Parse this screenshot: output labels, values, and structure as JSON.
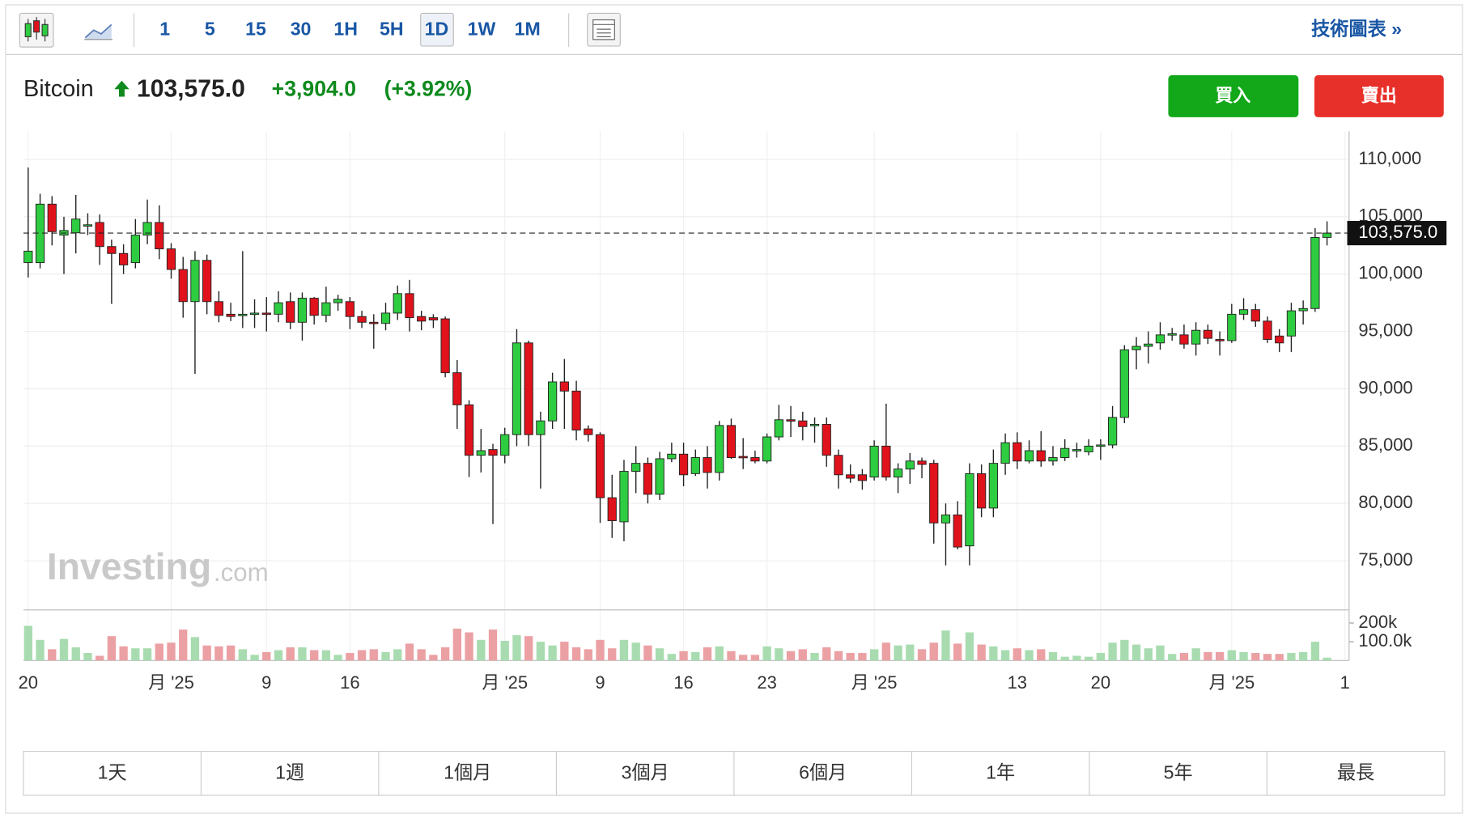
{
  "toolbar": {
    "intervals": [
      "1",
      "5",
      "15",
      "30",
      "1H",
      "5H",
      "1D",
      "1W",
      "1M"
    ],
    "selected_interval": "1D",
    "technical_link": "技術圖表 »"
  },
  "header": {
    "name": "Bitcoin",
    "price": "103,575.0",
    "change": "+3,904.0",
    "change_pct": "(+3.92%)"
  },
  "buttons": {
    "buy": "買入",
    "sell": "賣出"
  },
  "watermark": {
    "brand": "Investing",
    "suffix": ".com"
  },
  "chart_data": {
    "type": "candlestick",
    "x": [
      0,
      1,
      2,
      3,
      4,
      5,
      6,
      7,
      8,
      9,
      10,
      11,
      12,
      13,
      14,
      15,
      16,
      17,
      18,
      19,
      20,
      21,
      22,
      23,
      24,
      25,
      26,
      27,
      28,
      29,
      30,
      31,
      32,
      33,
      34,
      35,
      36,
      37,
      38,
      39,
      40,
      41,
      42,
      43,
      44,
      45,
      46,
      47,
      48,
      49,
      50,
      51,
      52,
      53,
      54,
      55,
      56,
      57,
      58,
      59,
      60,
      61,
      62,
      63,
      64,
      65,
      66,
      67,
      68,
      69,
      70,
      71,
      72,
      73,
      74,
      75,
      76,
      77,
      78,
      79,
      80,
      81,
      82,
      83,
      84,
      85,
      86,
      87,
      88,
      89,
      90,
      91,
      92,
      93,
      94,
      95,
      96,
      97,
      98,
      99,
      100,
      101,
      102,
      103,
      104,
      105,
      106,
      107,
      108,
      109
    ],
    "open": [
      101000,
      101000,
      106100,
      103400,
      103600,
      104200,
      104500,
      102400,
      101800,
      101000,
      103400,
      104500,
      102200,
      100400,
      97600,
      101200,
      97600,
      96500,
      96400,
      96500,
      96600,
      96500,
      97600,
      95800,
      97900,
      96400,
      97500,
      97600,
      96300,
      95800,
      95700,
      96600,
      98300,
      96300,
      96200,
      96100,
      91400,
      88600,
      84200,
      84700,
      84200,
      86000,
      94000,
      86000,
      87200,
      90600,
      89800,
      86500,
      86000,
      80500,
      78400,
      82800,
      83500,
      80800,
      83900,
      84300,
      82600,
      84000,
      82700,
      86800,
      84100,
      84000,
      83700,
      85800,
      87300,
      87200,
      86800,
      86900,
      84200,
      82500,
      82500,
      82300,
      85000,
      82300,
      83000,
      83700,
      83500,
      78300,
      79000,
      76300,
      82600,
      79600,
      83500,
      85300,
      83700,
      84600,
      83700,
      84000,
      84600,
      84500,
      85000,
      85100,
      87500,
      93400,
      93700,
      94000,
      94700,
      94700,
      93900,
      95100,
      94300,
      94200,
      96500,
      96900,
      95900,
      94600,
      94600,
      96800,
      97000,
      103200
    ],
    "high": [
      109300,
      107000,
      106800,
      105000,
      106900,
      105300,
      105200,
      103000,
      102600,
      104800,
      106500,
      106000,
      102700,
      101500,
      102000,
      101700,
      98500,
      97500,
      102000,
      97800,
      98000,
      98500,
      98400,
      98400,
      98000,
      98900,
      98200,
      98000,
      96800,
      96500,
      97500,
      99000,
      99500,
      96800,
      96500,
      96300,
      92500,
      89000,
      86500,
      85200,
      86600,
      95200,
      94200,
      88000,
      91400,
      92600,
      90700,
      86800,
      86200,
      82500,
      83800,
      85000,
      84000,
      84500,
      85300,
      85300,
      84700,
      85000,
      87200,
      87400,
      85700,
      84600,
      86100,
      88600,
      88500,
      88000,
      87500,
      87500,
      84700,
      83400,
      83000,
      85500,
      88700,
      83500,
      84400,
      84000,
      83800,
      80000,
      80200,
      83500,
      83400,
      84700,
      86100,
      86200,
      85500,
      86300,
      85000,
      85600,
      85300,
      85600,
      85600,
      88500,
      93800,
      94500,
      95000,
      95800,
      95300,
      95600,
      95800,
      95600,
      95000,
      97400,
      97900,
      97400,
      96300,
      95200,
      97500,
      97700,
      104000,
      104600
    ],
    "low": [
      99700,
      100500,
      102500,
      100000,
      101800,
      103400,
      100800,
      97400,
      100000,
      100500,
      102600,
      101300,
      99600,
      96200,
      91300,
      96500,
      95800,
      95900,
      95300,
      95300,
      95000,
      95800,
      95200,
      94200,
      95600,
      95800,
      96800,
      95200,
      95300,
      93500,
      95100,
      96000,
      95000,
      95100,
      95300,
      91000,
      86500,
      82300,
      82700,
      78200,
      83500,
      85000,
      85000,
      81300,
      86500,
      86500,
      85500,
      85400,
      78300,
      77000,
      76700,
      80900,
      80000,
      80300,
      83600,
      81500,
      82400,
      81300,
      82000,
      83900,
      83000,
      83500,
      83500,
      85500,
      85800,
      85500,
      85300,
      83200,
      81300,
      81800,
      81200,
      82000,
      82000,
      80900,
      81700,
      82200,
      76500,
      74600,
      76000,
      74600,
      78800,
      78800,
      82500,
      83000,
      83500,
      83200,
      83300,
      83700,
      84000,
      84200,
      83800,
      84800,
      87000,
      91700,
      92200,
      93400,
      94200,
      93500,
      92900,
      93900,
      92900,
      94000,
      96000,
      95400,
      94000,
      93200,
      93200,
      95600,
      96700,
      102500
    ],
    "close": [
      102000,
      106100,
      103700,
      103800,
      104800,
      104300,
      102400,
      101800,
      100800,
      103400,
      104500,
      102200,
      100400,
      97600,
      101200,
      97600,
      96400,
      96300,
      96500,
      96600,
      96500,
      97500,
      95800,
      97900,
      96400,
      97500,
      97800,
      96300,
      95800,
      95700,
      96600,
      98300,
      96200,
      95900,
      96000,
      91400,
      88600,
      84200,
      84600,
      84200,
      86000,
      94000,
      86000,
      87200,
      90600,
      89800,
      86400,
      86000,
      80500,
      78500,
      82800,
      83500,
      80800,
      83900,
      84300,
      82500,
      84000,
      82700,
      86800,
      84000,
      84000,
      83700,
      85800,
      87300,
      87200,
      86700,
      86900,
      84200,
      82500,
      82200,
      82000,
      85000,
      82300,
      83000,
      83700,
      83400,
      78300,
      79000,
      76200,
      82600,
      79600,
      83500,
      85300,
      83700,
      84600,
      83700,
      84000,
      84800,
      84700,
      85000,
      85100,
      87500,
      93400,
      93700,
      93900,
      94700,
      94800,
      93900,
      95100,
      94400,
      94200,
      96500,
      96900,
      95900,
      94300,
      94000,
      96800,
      97000,
      103200,
      103575
    ],
    "volume": [
      185000,
      110000,
      60000,
      115000,
      70000,
      40000,
      25000,
      130000,
      75000,
      65000,
      65000,
      90000,
      95000,
      165000,
      125000,
      80000,
      75000,
      80000,
      60000,
      30000,
      45000,
      55000,
      70000,
      70000,
      55000,
      55000,
      30000,
      40000,
      55000,
      60000,
      45000,
      60000,
      90000,
      60000,
      30000,
      70000,
      170000,
      150000,
      110000,
      165000,
      105000,
      135000,
      130000,
      100000,
      80000,
      100000,
      70000,
      60000,
      110000,
      65000,
      110000,
      95000,
      80000,
      65000,
      35000,
      50000,
      45000,
      70000,
      75000,
      50000,
      30000,
      30000,
      75000,
      65000,
      50000,
      60000,
      40000,
      70000,
      50000,
      40000,
      40000,
      60000,
      95000,
      80000,
      85000,
      60000,
      95000,
      160000,
      90000,
      150000,
      85000,
      75000,
      55000,
      65000,
      55000,
      60000,
      45000,
      20000,
      25000,
      20000,
      40000,
      95000,
      110000,
      85000,
      65000,
      80000,
      35000,
      40000,
      65000,
      45000,
      45000,
      55000,
      45000,
      40000,
      35000,
      35000,
      40000,
      45000,
      100000,
      15000
    ],
    "up_color": "#2ecc40",
    "down_color": "#e0121c",
    "volume_up_color": "#a8dcb0",
    "volume_down_color": "#eba0a3",
    "xlim": [
      -0.4,
      110.85
    ],
    "xticks": [
      {
        "value": 0,
        "label": "20"
      },
      {
        "value": 12,
        "label": "月 '25"
      },
      {
        "value": 20,
        "label": "9"
      },
      {
        "value": 27,
        "label": "16"
      },
      {
        "value": 40,
        "label": "月 '25"
      },
      {
        "value": 48,
        "label": "9"
      },
      {
        "value": 55,
        "label": "16"
      },
      {
        "value": 62,
        "label": "23"
      },
      {
        "value": 71,
        "label": "月 '25"
      },
      {
        "value": 83,
        "label": "13"
      },
      {
        "value": 90,
        "label": "20"
      },
      {
        "value": 101,
        "label": "月 '25"
      },
      {
        "value": 110.5,
        "label": "1"
      }
    ],
    "ylim": [
      70800,
      112450
    ],
    "yticks": [
      {
        "value": 75000,
        "label": "75,000"
      },
      {
        "value": 80000,
        "label": "80,000"
      },
      {
        "value": 85000,
        "label": "85,000"
      },
      {
        "value": 90000,
        "label": "90,000"
      },
      {
        "value": 95000,
        "label": "95,000"
      },
      {
        "value": 100000,
        "label": "100,000"
      },
      {
        "value": 105000,
        "label": "105,000"
      },
      {
        "value": 110000,
        "label": "110,000"
      }
    ],
    "vlim": [
      0,
      265000
    ],
    "vticks": [
      {
        "value": 100000,
        "label": "100.0k"
      },
      {
        "value": 200000,
        "label": "200k"
      }
    ],
    "last_price": {
      "value": 103575,
      "label": "103,575.0"
    },
    "grid": true
  },
  "ranges": [
    "1天",
    "1週",
    "1個月",
    "3個月",
    "6個月",
    "1年",
    "5年",
    "最長"
  ]
}
